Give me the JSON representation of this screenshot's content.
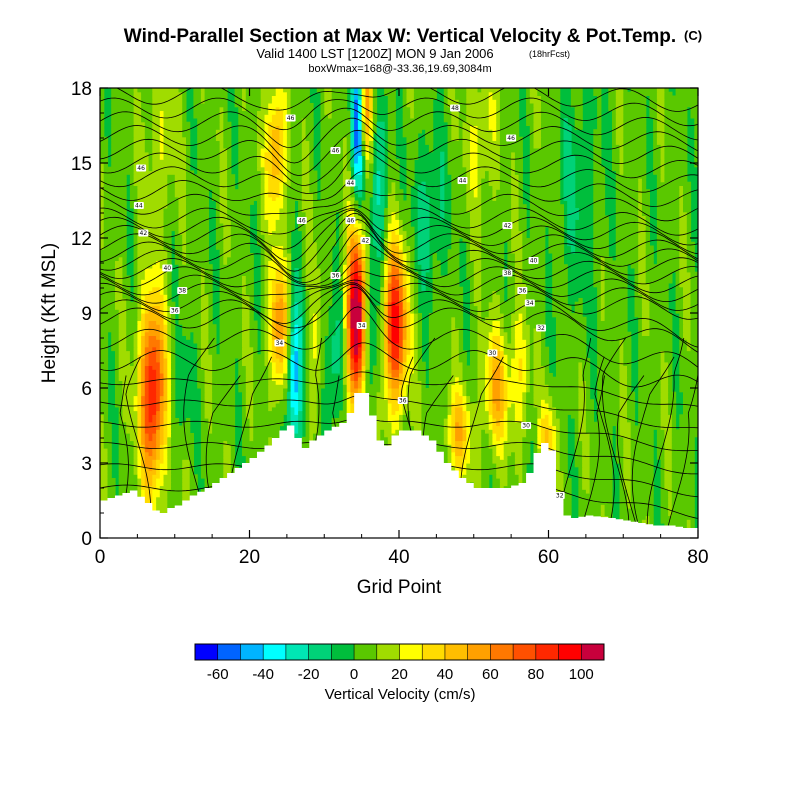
{
  "header": {
    "title": "Wind-Parallel Section at Max W: Vertical Velocity & Pot.Temp.",
    "title_units": "(C)",
    "subtitle": "Valid 1400 LST [1200Z] MON 9 Jan 2006",
    "subtitle_note": "(18hrFcst)",
    "box_info": "boxWmax=168@-33.36,19.69,3084m"
  },
  "chart_data": {
    "type": "heatmap",
    "xlabel": "Grid Point",
    "ylabel": "Height (Kft MSL)",
    "xlim": [
      0,
      80
    ],
    "ylim": [
      0,
      18
    ],
    "x_ticks": [
      "0",
      "20",
      "40",
      "60",
      "80"
    ],
    "y_ticks": [
      "0",
      "3",
      "6",
      "9",
      "12",
      "15",
      "18"
    ],
    "colorbar": {
      "label": "Vertical Velocity (cm/s)",
      "levels": [
        -70,
        -60,
        -50,
        -40,
        -30,
        -20,
        -10,
        0,
        10,
        20,
        30,
        40,
        50,
        60,
        70,
        80,
        90,
        100,
        110
      ],
      "tick_labels": [
        "-60",
        "-40",
        "-20",
        "0",
        "20",
        "40",
        "60",
        "80",
        "100"
      ],
      "colors": [
        "#0000ff",
        "#0064ff",
        "#00b4ff",
        "#00ffff",
        "#00e6b4",
        "#00d278",
        "#00be3c",
        "#5ac800",
        "#a0dc00",
        "#ffff00",
        "#ffdc00",
        "#ffbe00",
        "#ffa000",
        "#ff7800",
        "#ff5000",
        "#ff2800",
        "#ff0000",
        "#c8003c"
      ]
    },
    "background_w": 5,
    "terrain_kft": [
      [
        0,
        1.5
      ],
      [
        2,
        1.7
      ],
      [
        4,
        1.9
      ],
      [
        6,
        1.4
      ],
      [
        7,
        1.1
      ],
      [
        8,
        1.0
      ],
      [
        9,
        1.2
      ],
      [
        10,
        1.3
      ],
      [
        12,
        1.7
      ],
      [
        14,
        2.0
      ],
      [
        16,
        2.4
      ],
      [
        18,
        2.8
      ],
      [
        20,
        3.2
      ],
      [
        22,
        3.7
      ],
      [
        24,
        4.3
      ],
      [
        25,
        4.5
      ],
      [
        26,
        4.0
      ],
      [
        27,
        3.6
      ],
      [
        28,
        3.9
      ],
      [
        30,
        4.3
      ],
      [
        32,
        4.6
      ],
      [
        33,
        5.0
      ],
      [
        34,
        5.8
      ],
      [
        35,
        5.8
      ],
      [
        36,
        4.9
      ],
      [
        37,
        3.9
      ],
      [
        38,
        3.7
      ],
      [
        39,
        4.1
      ],
      [
        40,
        4.3
      ],
      [
        42,
        4.3
      ],
      [
        44,
        3.9
      ],
      [
        46,
        3.0
      ],
      [
        48,
        2.4
      ],
      [
        50,
        2.0
      ],
      [
        52,
        2.0
      ],
      [
        54,
        2.0
      ],
      [
        56,
        2.2
      ],
      [
        57,
        2.6
      ],
      [
        58,
        3.4
      ],
      [
        59,
        3.8
      ],
      [
        60,
        3.5
      ],
      [
        61,
        1.6
      ],
      [
        62,
        0.9
      ],
      [
        63,
        0.8
      ],
      [
        65,
        0.9
      ],
      [
        68,
        0.8
      ],
      [
        70,
        0.7
      ],
      [
        72,
        0.6
      ],
      [
        74,
        0.5
      ],
      [
        76,
        0.5
      ],
      [
        78,
        0.4
      ],
      [
        80,
        0.4
      ]
    ],
    "w_features": [
      {
        "x": 7,
        "y": 5.8,
        "sx": 1.2,
        "sy": 2.6,
        "w": 90
      },
      {
        "x": 11,
        "y": 6.0,
        "sx": 0.9,
        "sy": 1.4,
        "w": -15
      },
      {
        "x": 24,
        "y": 8.5,
        "sx": 0.9,
        "sy": 1.8,
        "w": 55
      },
      {
        "x": 26,
        "y": 6.5,
        "sx": 0.7,
        "sy": 2.2,
        "w": -55
      },
      {
        "x": 29,
        "y": 7.5,
        "sx": 0.8,
        "sy": 2.2,
        "w": 20
      },
      {
        "x": 31,
        "y": 7.0,
        "sx": 1.0,
        "sy": 2.0,
        "w": -25
      },
      {
        "x": 34.3,
        "y": 8.8,
        "sx": 0.9,
        "sy": 2.4,
        "w": 115
      },
      {
        "x": 36.2,
        "y": 8.3,
        "sx": 0.7,
        "sy": 2.2,
        "w": -30
      },
      {
        "x": 39.5,
        "y": 8.5,
        "sx": 1.1,
        "sy": 2.2,
        "w": 90
      },
      {
        "x": 34.5,
        "y": 16.5,
        "sx": 0.6,
        "sy": 2.2,
        "w": -65
      },
      {
        "x": 35.5,
        "y": 17.2,
        "sx": 0.6,
        "sy": 1.6,
        "w": 55
      },
      {
        "x": 37.5,
        "y": 14.5,
        "sx": 0.8,
        "sy": 2.4,
        "w": -25
      },
      {
        "x": 23.5,
        "y": 15.5,
        "sx": 0.9,
        "sy": 1.8,
        "w": 50
      },
      {
        "x": 44,
        "y": 13.0,
        "sx": 1.6,
        "sy": 2.2,
        "w": -20
      },
      {
        "x": 53,
        "y": 6.0,
        "sx": 1.1,
        "sy": 1.6,
        "w": 45
      },
      {
        "x": 56,
        "y": 6.5,
        "sx": 0.9,
        "sy": 1.8,
        "w": 25
      },
      {
        "x": 60,
        "y": 3.8,
        "sx": 0.8,
        "sy": 1.2,
        "w": 35
      },
      {
        "x": 48,
        "y": 4.2,
        "sx": 1.2,
        "sy": 1.2,
        "w": 40
      },
      {
        "x": 64,
        "y": 14.0,
        "sx": 2.0,
        "sy": 3.5,
        "w": -15
      },
      {
        "x": 51,
        "y": 16.0,
        "sx": 1.5,
        "sy": 2.0,
        "w": 18
      },
      {
        "x": 8,
        "y": 15.5,
        "sx": 1.5,
        "sy": 2.2,
        "w": 15
      }
    ],
    "contour_labels": [
      {
        "x": 5.5,
        "y": 14.8,
        "t": "46"
      },
      {
        "x": 5.2,
        "y": 13.3,
        "t": "44"
      },
      {
        "x": 5.8,
        "y": 12.2,
        "t": "42"
      },
      {
        "x": 9.0,
        "y": 10.8,
        "t": "40"
      },
      {
        "x": 11.0,
        "y": 9.9,
        "t": "38"
      },
      {
        "x": 10.0,
        "y": 9.1,
        "t": "36"
      },
      {
        "x": 25.5,
        "y": 16.8,
        "t": "46"
      },
      {
        "x": 31.5,
        "y": 15.5,
        "t": "46"
      },
      {
        "x": 27.0,
        "y": 12.7,
        "t": "46"
      },
      {
        "x": 33.5,
        "y": 14.2,
        "t": "44"
      },
      {
        "x": 33.5,
        "y": 12.7,
        "t": "46"
      },
      {
        "x": 35.5,
        "y": 11.9,
        "t": "42"
      },
      {
        "x": 31.5,
        "y": 10.5,
        "t": "36"
      },
      {
        "x": 35.0,
        "y": 8.5,
        "t": "34"
      },
      {
        "x": 24.0,
        "y": 7.8,
        "t": "34"
      },
      {
        "x": 40.5,
        "y": 5.5,
        "t": "36"
      },
      {
        "x": 47.5,
        "y": 17.2,
        "t": "48"
      },
      {
        "x": 55.0,
        "y": 16.0,
        "t": "46"
      },
      {
        "x": 48.5,
        "y": 14.3,
        "t": "44"
      },
      {
        "x": 54.5,
        "y": 12.5,
        "t": "42"
      },
      {
        "x": 58.0,
        "y": 11.1,
        "t": "40"
      },
      {
        "x": 54.5,
        "y": 10.6,
        "t": "38"
      },
      {
        "x": 56.5,
        "y": 9.9,
        "t": "36"
      },
      {
        "x": 57.5,
        "y": 9.4,
        "t": "34"
      },
      {
        "x": 59.0,
        "y": 8.4,
        "t": "32"
      },
      {
        "x": 52.5,
        "y": 7.4,
        "t": "30"
      },
      {
        "x": 57.0,
        "y": 4.5,
        "t": "30"
      },
      {
        "x": 61.5,
        "y": 1.7,
        "t": "32"
      }
    ]
  }
}
